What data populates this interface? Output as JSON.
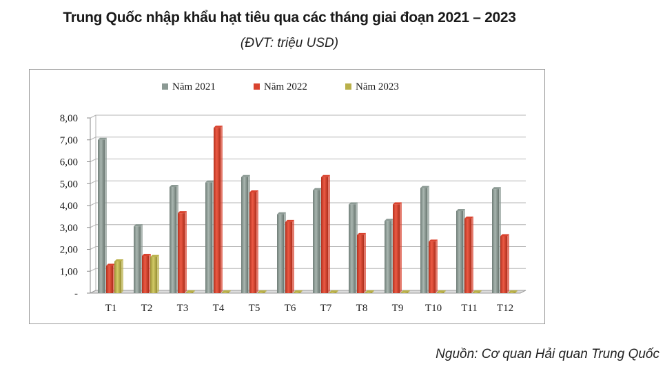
{
  "header": {
    "title": "Trung Quốc nhập khẩu hạt tiêu qua các tháng giai đoạn 2021 – 2023",
    "unit_note": "(ĐVT: triệu USD)"
  },
  "footer": {
    "source": "Nguồn: Cơ quan Hải quan Trung Quốc"
  },
  "chart_data": {
    "type": "bar",
    "title": "Trung Quốc nhập khẩu hạt tiêu qua các tháng giai đoạn 2021 – 2023",
    "subtitle": "(ĐVT: triệu USD)",
    "xlabel": "",
    "ylabel": "",
    "categories": [
      "T1",
      "T2",
      "T3",
      "T4",
      "T5",
      "T6",
      "T7",
      "T8",
      "T9",
      "T10",
      "T11",
      "T12"
    ],
    "y_ticks": [
      "-",
      "1,00",
      "2,00",
      "3,00",
      "4,00",
      "5,00",
      "6,00",
      "7,00",
      "8,00"
    ],
    "ylim": [
      0,
      8
    ],
    "grid": true,
    "legend_position": "top-center",
    "series": [
      {
        "name": "Năm 2021",
        "color": "#8c9a94",
        "values": [
          7.0,
          3.05,
          4.85,
          5.05,
          5.3,
          3.6,
          4.7,
          4.05,
          3.3,
          4.8,
          3.75,
          4.75
        ]
      },
      {
        "name": "Năm 2022",
        "color": "#d9432f",
        "values": [
          1.25,
          1.7,
          3.65,
          7.55,
          4.6,
          3.25,
          5.3,
          2.65,
          4.05,
          2.35,
          3.4,
          2.6
        ]
      },
      {
        "name": "Năm 2023",
        "color": "#b9b04a",
        "values": [
          1.45,
          1.65,
          0.02,
          0.02,
          0.02,
          0.02,
          0.02,
          0.02,
          0.02,
          0.02,
          0.02,
          0.02
        ]
      }
    ]
  }
}
